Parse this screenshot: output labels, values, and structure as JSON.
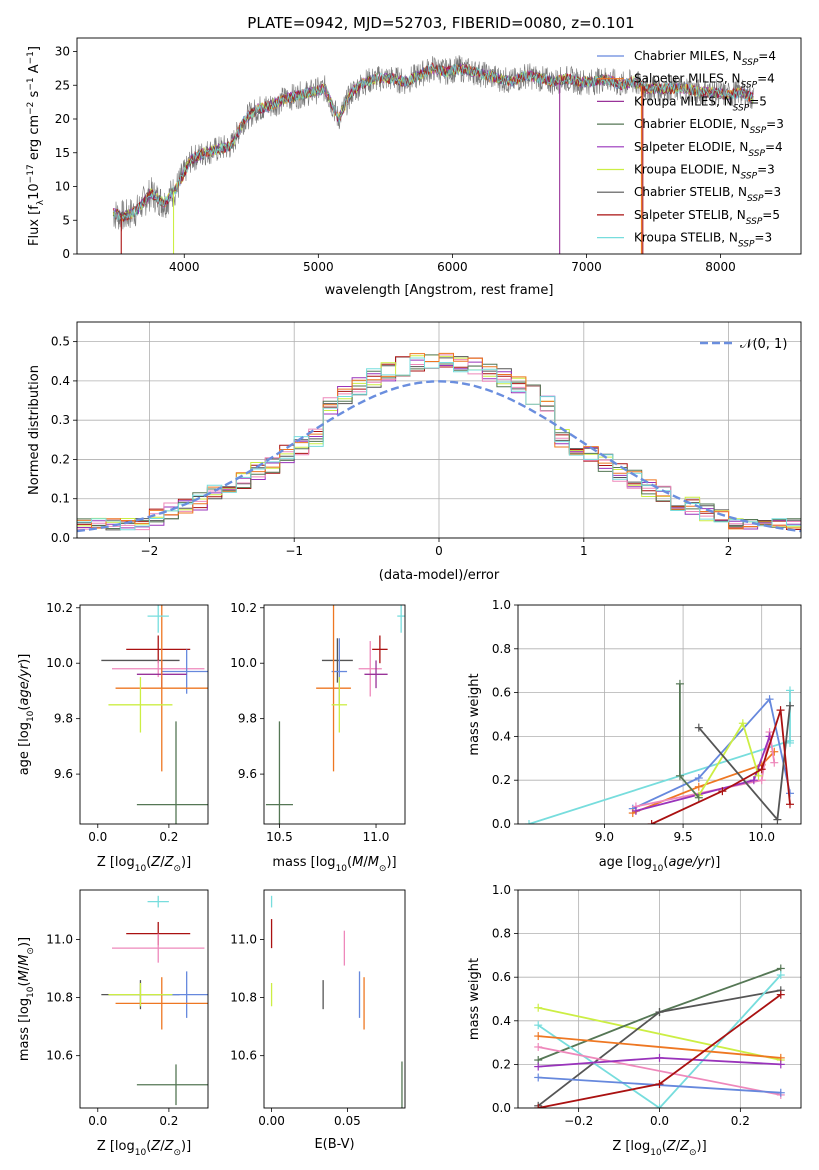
{
  "figure_title": "PLATE=0942, MJD=52703, FIBERID=0080, z=0.101",
  "colors": {
    "Chabrier MILES": "#6688dd",
    "Salpeter MILES": "#ee7722",
    "Kroupa MILES": "#993399",
    "Chabrier ELODIE": "#557755",
    "Salpeter ELODIE": "#9933bb",
    "Kroupa ELODIE": "#ccee44",
    "Chabrier STELIB": "#555555",
    "Salpeter STELIB": "#aa1111",
    "Kroupa STELIB": "#77dddd",
    "pink": "#ee88bb"
  },
  "chart_data": [
    {
      "id": "spectrum",
      "type": "line",
      "title": "PLATE=0942, MJD=52703, FIBERID=0080, z=0.101",
      "xlabel": "wavelength [Angstrom, rest frame]",
      "ylabel": "Flux [f_λ 10^-17 erg cm^-2 s^-1 A^-1]",
      "xlim": [
        3200,
        8600
      ],
      "ylim": [
        0,
        32
      ],
      "xticks": [
        4000,
        5000,
        6000,
        7000,
        8000
      ],
      "yticks": [
        0,
        5,
        10,
        15,
        20,
        25,
        30
      ],
      "legend_position": "top-right",
      "continuum": {
        "x": [
          3470,
          3550,
          3650,
          3750,
          3850,
          3950,
          4050,
          4150,
          4250,
          4350,
          4450,
          4550,
          4650,
          4750,
          4850,
          4950,
          5050,
          5150,
          5250,
          5350,
          5450,
          5550,
          5650,
          5750,
          5850,
          5950,
          6050,
          6150,
          6250,
          6350,
          6450,
          6550,
          6650,
          6750,
          6850,
          6950,
          7050,
          7150,
          7250,
          7350,
          7450,
          7550,
          7650,
          7750,
          7850,
          7950,
          8050,
          8150,
          8250
        ],
        "y": [
          6,
          5.5,
          6.5,
          9,
          7.5,
          10,
          14,
          15,
          15.5,
          16,
          20,
          21.5,
          22,
          23,
          23.5,
          24,
          24.5,
          20,
          24,
          25.5,
          26,
          26,
          25.5,
          26.5,
          27.5,
          27,
          27.5,
          27,
          26.5,
          26,
          25.5,
          26.5,
          26,
          25.5,
          26,
          25.5,
          25.5,
          26,
          25,
          25.5,
          24.5,
          24.5,
          24.5,
          24.5,
          24,
          24,
          23.5,
          24,
          23
        ]
      },
      "series": [
        {
          "name": "Chabrier MILES, N_SSP=4",
          "label": "Chabrier MILES, N",
          "ssp": "SSP",
          "n": "=4",
          "color_key": "Chabrier MILES"
        },
        {
          "name": "Salpeter MILES, N_SSP=4",
          "label": "Salpeter MILES, N",
          "ssp": "SSP",
          "n": "=4",
          "color_key": "Salpeter MILES"
        },
        {
          "name": "Kroupa MILES, N_SSP=5",
          "label": "Kroupa MILES, N",
          "ssp": "SSP",
          "n": "=5",
          "color_key": "Kroupa MILES"
        },
        {
          "name": "Chabrier ELODIE, N_SSP=3",
          "label": "Chabrier ELODIE, N",
          "ssp": "SSP",
          "n": "=3",
          "color_key": "Chabrier ELODIE"
        },
        {
          "name": "Salpeter ELODIE, N_SSP=4",
          "label": "Salpeter ELODIE, N",
          "ssp": "SSP",
          "n": "=4",
          "color_key": "Salpeter ELODIE"
        },
        {
          "name": "Kroupa ELODIE, N_SSP=3",
          "label": "Kroupa ELODIE, N",
          "ssp": "SSP",
          "n": "=3",
          "color_key": "Kroupa ELODIE"
        },
        {
          "name": "Chabrier STELIB, N_SSP=3",
          "label": "Chabrier STELIB, N",
          "ssp": "SSP",
          "n": "=3",
          "color_key": "Chabrier STELIB"
        },
        {
          "name": "Salpeter STELIB, N_SSP=5",
          "label": "Salpeter STELIB, N",
          "ssp": "SSP",
          "n": "=5",
          "color_key": "Salpeter STELIB"
        },
        {
          "name": "Kroupa STELIB, N_SSP=3",
          "label": "Kroupa STELIB, N",
          "ssp": "SSP",
          "n": "=3",
          "color_key": "Kroupa STELIB"
        }
      ],
      "dropouts": [
        {
          "x": 3530,
          "color_key": "Salpeter STELIB"
        },
        {
          "x": 3920,
          "color_key": "Kroupa ELODIE"
        },
        {
          "x": 6800,
          "color_key": "Kroupa MILES"
        },
        {
          "x": 7410,
          "color_key": "Salpeter MILES"
        },
        {
          "x": 7420,
          "color_key": "Salpeter STELIB"
        }
      ]
    },
    {
      "id": "residuals",
      "type": "line",
      "xlabel": "(data-model)/error",
      "ylabel": "Normed distribution",
      "xlim": [
        -2.5,
        2.5
      ],
      "ylim": [
        0,
        0.55
      ],
      "xticks": [
        -2,
        -1,
        0,
        1,
        2
      ],
      "yticks": [
        0.0,
        0.1,
        0.2,
        0.3,
        0.4,
        0.5
      ],
      "grid": true,
      "legend_position": "top-right",
      "legend": "𝒩(0, 1)",
      "gaussian": {
        "mean": 0,
        "sigma": 1
      },
      "hist_bin_width": 0.1,
      "hist_series_colors": [
        "Chabrier STELIB",
        "Salpeter STELIB",
        "Kroupa ELODIE",
        "Salpeter ELODIE",
        "pink",
        "Chabrier ELODIE",
        "Salpeter MILES",
        "Kroupa STELIB"
      ]
    },
    {
      "id": "age-vs-Z",
      "type": "scatter",
      "xlabel": "Z [log10(Z/Z⊙)]",
      "ylabel": "age [log10(age/yr)]",
      "xlim": [
        -0.05,
        0.31
      ],
      "ylim": [
        9.42,
        10.21
      ],
      "xticks": [
        0.0,
        0.2
      ],
      "yticks": [
        9.6,
        9.8,
        10.0,
        10.2
      ],
      "points": [
        {
          "x": 0.12,
          "y": 10.01,
          "xerr": 0.11,
          "yerr": 0.0,
          "color_key": "Chabrier STELIB"
        },
        {
          "x": 0.17,
          "y": 10.05,
          "xerr": 0.09,
          "yerr": 0.05,
          "color_key": "Salpeter STELIB"
        },
        {
          "x": 0.17,
          "y": 9.98,
          "xerr": 0.13,
          "yerr": 0.03,
          "color_key": "pink"
        },
        {
          "x": 0.25,
          "y": 9.97,
          "xerr": 0.07,
          "yerr": 0.08,
          "color_key": "Chabrier MILES"
        },
        {
          "x": 0.18,
          "y": 9.96,
          "xerr": 0.07,
          "yerr": 0.05,
          "color_key": "Kroupa MILES"
        },
        {
          "x": 0.18,
          "y": 9.91,
          "xerr": 0.13,
          "yerr": 0.3,
          "color_key": "Salpeter MILES"
        },
        {
          "x": 0.12,
          "y": 9.85,
          "xerr": 0.09,
          "yerr": 0.1,
          "color_key": "Kroupa ELODIE"
        },
        {
          "x": 0.22,
          "y": 9.49,
          "xerr": 0.11,
          "yerr": 0.3,
          "color_key": "Chabrier ELODIE"
        },
        {
          "x": 0.17,
          "y": 10.17,
          "xerr": 0.03,
          "yerr": 0.06,
          "color_key": "Kroupa STELIB"
        }
      ]
    },
    {
      "id": "age-vs-mass",
      "type": "scatter",
      "xlabel": "mass [log10(M/M⊙)]",
      "ylabel": "",
      "xlim": [
        10.42,
        11.15
      ],
      "ylim": [
        9.42,
        10.21
      ],
      "xticks": [
        10.5,
        11.0
      ],
      "yticks": [
        9.6,
        9.8,
        10.0,
        10.2
      ],
      "points": [
        {
          "x": 10.8,
          "y": 10.01,
          "xerr": 0.08,
          "yerr": 0.08,
          "color_key": "Chabrier STELIB"
        },
        {
          "x": 11.02,
          "y": 10.05,
          "xerr": 0.04,
          "yerr": 0.05,
          "color_key": "Salpeter STELIB"
        },
        {
          "x": 10.97,
          "y": 9.98,
          "xerr": 0.06,
          "yerr": 0.1,
          "color_key": "pink"
        },
        {
          "x": 10.81,
          "y": 9.97,
          "xerr": 0.04,
          "yerr": 0.12,
          "color_key": "Chabrier MILES"
        },
        {
          "x": 11.0,
          "y": 9.96,
          "xerr": 0.06,
          "yerr": 0.05,
          "color_key": "Kroupa MILES"
        },
        {
          "x": 10.78,
          "y": 9.91,
          "xerr": 0.09,
          "yerr": 0.3,
          "color_key": "Salpeter MILES"
        },
        {
          "x": 10.81,
          "y": 9.85,
          "xerr": 0.04,
          "yerr": 0.1,
          "color_key": "Kroupa ELODIE"
        },
        {
          "x": 10.5,
          "y": 9.49,
          "xerr": 0.07,
          "yerr": 0.3,
          "color_key": "Chabrier ELODIE"
        },
        {
          "x": 11.13,
          "y": 10.17,
          "xerr": 0.02,
          "yerr": 0.06,
          "color_key": "Kroupa STELIB"
        }
      ]
    },
    {
      "id": "mass-weight-vs-age",
      "type": "line",
      "xlabel": "age [log10(age/yr)]",
      "ylabel": "mass weight",
      "xlim": [
        8.45,
        10.25
      ],
      "ylim": [
        0,
        1
      ],
      "xticks": [
        9.0,
        9.5,
        10.0
      ],
      "yticks": [
        0.0,
        0.2,
        0.4,
        0.6,
        0.8,
        1.0
      ],
      "grid": true,
      "series": [
        {
          "color_key": "Kroupa STELIB",
          "x": [
            8.52,
            10.18,
            10.18,
            10.18
          ],
          "y": [
            0.0,
            0.38,
            0.61,
            0.37
          ]
        },
        {
          "color_key": "Chabrier MILES",
          "x": [
            9.18,
            9.6,
            10.05,
            10.18
          ],
          "y": [
            0.07,
            0.21,
            0.57,
            0.14
          ]
        },
        {
          "color_key": "Salpeter MILES",
          "x": [
            9.18,
            9.6,
            10.0,
            10.08
          ],
          "y": [
            0.05,
            0.17,
            0.27,
            0.33
          ]
        },
        {
          "color_key": "pink",
          "x": [
            9.2,
            10.0,
            10.05,
            10.08
          ],
          "y": [
            0.08,
            0.2,
            0.42,
            0.28
          ]
        },
        {
          "color_key": "Salpeter ELODIE",
          "x": [
            9.2,
            9.95,
            10.05
          ],
          "y": [
            0.06,
            0.2,
            0.4
          ]
        },
        {
          "color_key": "Kroupa ELODIE",
          "x": [
            9.6,
            9.88,
            9.98
          ],
          "y": [
            0.13,
            0.46,
            0.22
          ]
        },
        {
          "color_key": "Chabrier ELODIE",
          "x": [
            9.48,
            9.48,
            9.6
          ],
          "y": [
            0.64,
            0.22,
            0.12
          ]
        },
        {
          "color_key": "Chabrier STELIB",
          "x": [
            9.6,
            10.1,
            10.18
          ],
          "y": [
            0.44,
            0.02,
            0.54
          ]
        },
        {
          "color_key": "Salpeter STELIB",
          "x": [
            9.3,
            9.75,
            10.0,
            10.12,
            10.18
          ],
          "y": [
            0.0,
            0.15,
            0.25,
            0.52,
            0.09
          ]
        }
      ]
    },
    {
      "id": "mass-vs-Z",
      "type": "scatter",
      "xlabel": "Z [log10(Z/Z⊙)]",
      "ylabel": "mass [log10(M/M⊙)]",
      "xlim": [
        -0.05,
        0.31
      ],
      "ylim": [
        10.42,
        11.17
      ],
      "xticks": [
        0.0,
        0.2
      ],
      "yticks": [
        10.6,
        10.8,
        11.0
      ],
      "points": [
        {
          "x": 0.17,
          "y": 11.02,
          "xerr": 0.09,
          "yerr": 0.04,
          "color_key": "Salpeter STELIB"
        },
        {
          "x": 0.17,
          "y": 10.97,
          "xerr": 0.13,
          "yerr": 0.05,
          "color_key": "pink"
        },
        {
          "x": 0.12,
          "y": 10.81,
          "xerr": 0.11,
          "yerr": 0.05,
          "color_key": "Chabrier STELIB"
        },
        {
          "x": 0.25,
          "y": 10.81,
          "xerr": 0.07,
          "yerr": 0.08,
          "color_key": "Chabrier MILES"
        },
        {
          "x": 0.18,
          "y": 10.78,
          "xerr": 0.13,
          "yerr": 0.09,
          "color_key": "Salpeter MILES"
        },
        {
          "x": 0.12,
          "y": 10.81,
          "xerr": 0.09,
          "yerr": 0.04,
          "color_key": "Kroupa ELODIE"
        },
        {
          "x": 0.22,
          "y": 10.5,
          "xerr": 0.11,
          "yerr": 0.07,
          "color_key": "Chabrier ELODIE"
        },
        {
          "x": 0.17,
          "y": 11.13,
          "xerr": 0.03,
          "yerr": 0.02,
          "color_key": "Kroupa STELIB"
        }
      ]
    },
    {
      "id": "mass-vs-EBV",
      "type": "scatter",
      "xlabel": "E(B-V)",
      "ylabel": "",
      "xlim": [
        -0.005,
        0.088
      ],
      "ylim": [
        10.42,
        11.17
      ],
      "xticks": [
        0.0,
        0.05
      ],
      "yticks": [
        10.6,
        10.8,
        11.0
      ],
      "points": [
        {
          "x": 0.0,
          "y": 11.02,
          "yerr": 0.05,
          "color_key": "Salpeter STELIB"
        },
        {
          "x": 0.0,
          "y": 11.13,
          "yerr": 0.02,
          "color_key": "Kroupa STELIB"
        },
        {
          "x": 0.0,
          "y": 10.81,
          "yerr": 0.04,
          "color_key": "Kroupa ELODIE"
        },
        {
          "x": 0.034,
          "y": 10.81,
          "yerr": 0.05,
          "color_key": "Chabrier STELIB"
        },
        {
          "x": 0.048,
          "y": 10.97,
          "yerr": 0.06,
          "color_key": "pink"
        },
        {
          "x": 0.058,
          "y": 10.81,
          "yerr": 0.08,
          "color_key": "Chabrier MILES"
        },
        {
          "x": 0.061,
          "y": 10.78,
          "yerr": 0.09,
          "color_key": "Salpeter MILES"
        },
        {
          "x": 0.086,
          "y": 10.5,
          "yerr": 0.08,
          "color_key": "Chabrier ELODIE"
        }
      ]
    },
    {
      "id": "mass-weight-vs-Z",
      "type": "line",
      "xlabel": "Z [log10(Z/Z⊙)]",
      "ylabel": "mass weight",
      "xlim": [
        -0.35,
        0.35
      ],
      "ylim": [
        0,
        1
      ],
      "xticks": [
        -0.2,
        0.0,
        0.2
      ],
      "yticks": [
        0.0,
        0.2,
        0.4,
        0.6,
        0.8,
        1.0
      ],
      "grid": true,
      "series": [
        {
          "color_key": "Kroupa ELODIE",
          "x": [
            -0.3,
            0.3
          ],
          "y": [
            0.46,
            0.22
          ]
        },
        {
          "color_key": "Chabrier ELODIE",
          "x": [
            -0.3,
            0.0,
            0.3
          ],
          "y": [
            0.22,
            0.44,
            0.64
          ]
        },
        {
          "color_key": "Chabrier STELIB",
          "x": [
            -0.3,
            0.0,
            0.3
          ],
          "y": [
            0.01,
            0.44,
            0.54
          ]
        },
        {
          "color_key": "Kroupa STELIB",
          "x": [
            -0.3,
            0.0,
            0.3
          ],
          "y": [
            0.38,
            0.0,
            0.61
          ]
        },
        {
          "color_key": "Salpeter MILES",
          "x": [
            -0.3,
            0.3
          ],
          "y": [
            0.33,
            0.23
          ]
        },
        {
          "color_key": "pink",
          "x": [
            -0.3,
            0.3
          ],
          "y": [
            0.28,
            0.06
          ]
        },
        {
          "color_key": "Salpeter ELODIE",
          "x": [
            -0.3,
            0.0,
            0.3
          ],
          "y": [
            0.19,
            0.23,
            0.2
          ]
        },
        {
          "color_key": "Chabrier MILES",
          "x": [
            -0.3,
            0.3
          ],
          "y": [
            0.14,
            0.07
          ]
        },
        {
          "color_key": "Salpeter STELIB",
          "x": [
            -0.3,
            0.0,
            0.3
          ],
          "y": [
            0.0,
            0.11,
            0.52
          ]
        }
      ]
    }
  ]
}
